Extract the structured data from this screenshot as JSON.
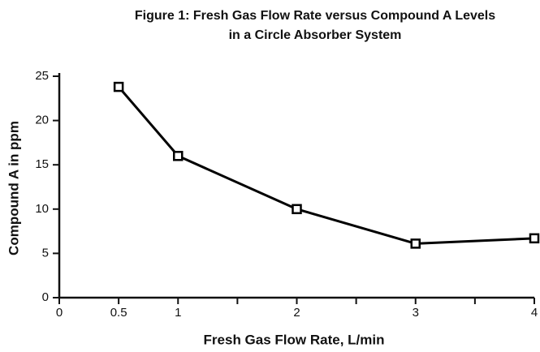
{
  "chart_data": {
    "type": "line",
    "title": [
      "Figure 1: Fresh Gas Flow Rate versus Compound A Levels",
      "in a Circle Absorber System"
    ],
    "xlabel": "Fresh Gas Flow Rate, L/min",
    "ylabel": "Compound A in ppm",
    "x": [
      0.5,
      1,
      2,
      3,
      4
    ],
    "series": [
      {
        "name": "Compound A",
        "color": "#000000",
        "values": [
          23.8,
          16,
          10,
          6.1,
          6.7
        ]
      }
    ],
    "xlim": [
      0,
      4
    ],
    "xticks": [
      0,
      0.5,
      1,
      2,
      3,
      4
    ],
    "xminorticks": [
      1.5,
      2.5,
      3.5
    ],
    "ylim": [
      0,
      25
    ],
    "yticks": [
      0,
      5,
      10,
      15,
      20,
      25
    ],
    "marker": "square",
    "grid": false
  }
}
